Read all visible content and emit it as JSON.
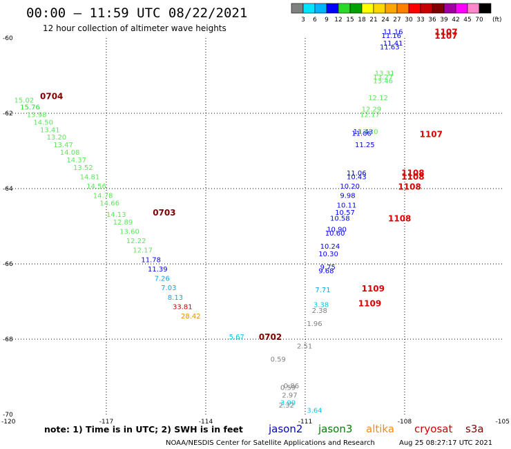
{
  "header": {
    "title": "00:00 – 11:59 UTC 08/22/2021",
    "subtitle": "12 hour collection of altimeter wave heights"
  },
  "colorbar": {
    "unit": "(ft)",
    "labels": [
      "3",
      "6",
      "9",
      "12",
      "15",
      "18",
      "21",
      "24",
      "27",
      "30",
      "33",
      "36",
      "39",
      "42",
      "45",
      "70"
    ],
    "colors": [
      "#808080",
      "#00e5ff",
      "#00b4ff",
      "#0000ff",
      "#2bd92b",
      "#00a000",
      "#ffff00",
      "#ffd700",
      "#ffa500",
      "#ff8000",
      "#ff0000",
      "#c80000",
      "#800000",
      "#a000a0",
      "#ff00ff",
      "#ff88cc",
      "#000000"
    ]
  },
  "footer": {
    "note": "note:  1) Time is in UTC;  2) SWH is in feet",
    "satellites": [
      {
        "name": "jason2",
        "color": "#0000cc"
      },
      {
        "name": "jason3",
        "color": "#008000"
      },
      {
        "name": "altika",
        "color": "#ff8c00"
      },
      {
        "name": "cryosat",
        "color": "#cc0000"
      },
      {
        "name": "s3a",
        "color": "#800000"
      }
    ],
    "credit": "NOAA/NESDIS Center for Satellite Applications and Research",
    "timestamp": "Aug 25 08:27:17 UTC 2021"
  },
  "chart_data": {
    "type": "scatter",
    "xlim": [
      -120,
      -105
    ],
    "ylim": [
      -70,
      -60
    ],
    "x_ticks": [
      "-120",
      "-117",
      "-114",
      "-111",
      "-108",
      "-105"
    ],
    "y_ticks": [
      "-60",
      "-62",
      "-64",
      "-66",
      "-68",
      "-70"
    ],
    "grid": true,
    "points": [
      {
        "x": -119.78,
        "y": -61.72,
        "v": "15.02",
        "c": "#5ce65c"
      },
      {
        "x": -119.6,
        "y": -61.9,
        "v": "15.76",
        "c": "#2bd92b"
      },
      {
        "x": -119.4,
        "y": -62.1,
        "v": "13.98",
        "c": "#5ce65c"
      },
      {
        "x": -119.2,
        "y": -62.3,
        "v": "14.50",
        "c": "#5ce65c"
      },
      {
        "x": -119.0,
        "y": -62.5,
        "v": "13.41",
        "c": "#5ce65c"
      },
      {
        "x": -118.8,
        "y": -62.7,
        "v": "13.20",
        "c": "#5ce65c"
      },
      {
        "x": -118.6,
        "y": -62.9,
        "v": "13.47",
        "c": "#5ce65c"
      },
      {
        "x": -118.4,
        "y": -63.1,
        "v": "14.08",
        "c": "#5ce65c"
      },
      {
        "x": -118.2,
        "y": -63.3,
        "v": "14.37",
        "c": "#5ce65c"
      },
      {
        "x": -118.0,
        "y": -63.5,
        "v": "13.52",
        "c": "#5ce65c"
      },
      {
        "x": -117.8,
        "y": -63.75,
        "v": "14.81",
        "c": "#5ce65c"
      },
      {
        "x": -117.6,
        "y": -64.0,
        "v": "14.56",
        "c": "#5ce65c"
      },
      {
        "x": -117.4,
        "y": -64.25,
        "v": "14.78",
        "c": "#5ce65c"
      },
      {
        "x": -117.2,
        "y": -64.45,
        "v": "14.66",
        "c": "#5ce65c"
      },
      {
        "x": -117.0,
        "y": -64.75,
        "v": "14.13",
        "c": "#5ce65c"
      },
      {
        "x": -116.8,
        "y": -64.95,
        "v": "12.89",
        "c": "#5ce65c"
      },
      {
        "x": -116.6,
        "y": -65.2,
        "v": "13.60",
        "c": "#5ce65c"
      },
      {
        "x": -116.4,
        "y": -65.45,
        "v": "12.22",
        "c": "#5ce65c"
      },
      {
        "x": -116.2,
        "y": -65.7,
        "v": "12.17",
        "c": "#5ce65c"
      },
      {
        "x": -115.95,
        "y": -65.95,
        "v": "11.78",
        "c": "#0000ff"
      },
      {
        "x": -115.75,
        "y": -66.2,
        "v": "11.39",
        "c": "#0000ff"
      },
      {
        "x": -115.55,
        "y": -66.45,
        "v": "7.26",
        "c": "#00aaee"
      },
      {
        "x": -115.35,
        "y": -66.7,
        "v": "7.03",
        "c": "#00aaee"
      },
      {
        "x": -115.15,
        "y": -66.95,
        "v": "8.13",
        "c": "#00aaee"
      },
      {
        "x": -115.0,
        "y": -67.2,
        "v": "33.81",
        "c": "#cc0000"
      },
      {
        "x": -114.75,
        "y": -67.45,
        "v": "28.42",
        "c": "#e09000"
      },
      {
        "x": -113.3,
        "y": -68.0,
        "v": "5.67",
        "c": "#00ccee"
      },
      {
        "x": -112.05,
        "y": -68.6,
        "v": "0.59",
        "c": "#808080"
      },
      {
        "x": -111.25,
        "y": -68.25,
        "v": "2.51",
        "c": "#808080"
      },
      {
        "x": -111.65,
        "y": -69.3,
        "v": "0.86",
        "c": "#808080"
      },
      {
        "x": -111.75,
        "y": -69.35,
        "v": "0.59",
        "c": "#808080"
      },
      {
        "x": -111.7,
        "y": -69.55,
        "v": "2.97",
        "c": "#808080"
      },
      {
        "x": -111.75,
        "y": -69.75,
        "v": "3.99",
        "c": "#00ccee"
      },
      {
        "x": -111.8,
        "y": -69.82,
        "v": "2.32",
        "c": "#808080"
      },
      {
        "x": -110.95,
        "y": -69.95,
        "v": "3.64",
        "c": "#00ccee"
      },
      {
        "x": -110.95,
        "y": -67.65,
        "v": "1.96",
        "c": "#808080"
      },
      {
        "x": -110.8,
        "y": -67.3,
        "v": "2.38",
        "c": "#808080"
      },
      {
        "x": -110.75,
        "y": -67.15,
        "v": "3.38",
        "c": "#00ccee"
      },
      {
        "x": -110.7,
        "y": -66.75,
        "v": "7.71",
        "c": "#00aaee"
      },
      {
        "x": -110.6,
        "y": -66.25,
        "v": "9.68",
        "c": "#0000ff"
      },
      {
        "x": -110.55,
        "y": -66.15,
        "v": "9.75",
        "c": "#0000ff"
      },
      {
        "x": -110.6,
        "y": -65.8,
        "v": "10.30",
        "c": "#0000ff"
      },
      {
        "x": -110.55,
        "y": -65.6,
        "v": "10.24",
        "c": "#0000ff"
      },
      {
        "x": -110.4,
        "y": -65.25,
        "v": "10.60",
        "c": "#0000ff"
      },
      {
        "x": -110.35,
        "y": -65.15,
        "v": "10.90",
        "c": "#0000ff"
      },
      {
        "x": -110.25,
        "y": -64.85,
        "v": "10.58",
        "c": "#0000ff"
      },
      {
        "x": -110.1,
        "y": -64.7,
        "v": "10.57",
        "c": "#0000ff"
      },
      {
        "x": -110.05,
        "y": -64.5,
        "v": "10.11",
        "c": "#0000ff"
      },
      {
        "x": -109.95,
        "y": -64.25,
        "v": "9.98",
        "c": "#0000ff"
      },
      {
        "x": -109.95,
        "y": -64.0,
        "v": "10.20",
        "c": "#0000ff"
      },
      {
        "x": -109.75,
        "y": -63.75,
        "v": "10.43",
        "c": "#0000ff"
      },
      {
        "x": -109.75,
        "y": -63.65,
        "v": "11.06",
        "c": "#0000ff"
      },
      {
        "x": -109.5,
        "y": -62.9,
        "v": "11.25",
        "c": "#0000ff"
      },
      {
        "x": -109.6,
        "y": -62.6,
        "v": "11.66",
        "c": "#0000ff"
      },
      {
        "x": -109.55,
        "y": -62.55,
        "v": "11.43",
        "c": "#0000ff"
      },
      {
        "x": -109.4,
        "y": -62.55,
        "v": "12.20",
        "c": "#5ce65c"
      },
      {
        "x": -109.35,
        "y": -62.1,
        "v": "12.17",
        "c": "#5ce65c"
      },
      {
        "x": -109.3,
        "y": -61.95,
        "v": "12.29",
        "c": "#5ce65c"
      },
      {
        "x": -109.1,
        "y": -61.65,
        "v": "12.12",
        "c": "#5ce65c"
      },
      {
        "x": -108.95,
        "y": -61.2,
        "v": "13.46",
        "c": "#5ce65c"
      },
      {
        "x": -108.95,
        "y": -61.1,
        "v": "13.27",
        "c": "#5ce65c"
      },
      {
        "x": -108.9,
        "y": -61.0,
        "v": "13.31",
        "c": "#5ce65c"
      },
      {
        "x": -108.75,
        "y": -60.3,
        "v": "11.63",
        "c": "#0000ff"
      },
      {
        "x": -108.65,
        "y": -60.2,
        "v": "11.41",
        "c": "#0000ff"
      },
      {
        "x": -108.7,
        "y": -60.0,
        "v": "11.16",
        "c": "#0000ff"
      },
      {
        "x": -108.65,
        "y": -59.9,
        "v": "11.16",
        "c": "#0000ff"
      }
    ],
    "pass_labels": [
      {
        "x": -119.0,
        "y": -61.62,
        "t": "0704",
        "c": "#800000"
      },
      {
        "x": -115.6,
        "y": -64.72,
        "t": "0703",
        "c": "#800000"
      },
      {
        "x": -112.4,
        "y": -68.02,
        "t": "0702",
        "c": "#800000"
      },
      {
        "x": -107.1,
        "y": -59.92,
        "t": "1107",
        "c": "#dd0000"
      },
      {
        "x": -107.1,
        "y": -60.02,
        "t": "1107",
        "c": "#dd0000"
      },
      {
        "x": -107.55,
        "y": -62.63,
        "t": "1107",
        "c": "#dd0000"
      },
      {
        "x": -108.1,
        "y": -63.66,
        "t": "1108",
        "c": "#dd0000"
      },
      {
        "x": -108.1,
        "y": -63.76,
        "t": "1108",
        "c": "#dd0000"
      },
      {
        "x": -108.2,
        "y": -64.03,
        "t": "1108",
        "c": "#dd0000"
      },
      {
        "x": -108.5,
        "y": -64.87,
        "t": "1108",
        "c": "#dd0000"
      },
      {
        "x": -109.3,
        "y": -66.73,
        "t": "1109",
        "c": "#dd0000"
      },
      {
        "x": -109.4,
        "y": -67.13,
        "t": "1109",
        "c": "#dd0000"
      }
    ]
  }
}
